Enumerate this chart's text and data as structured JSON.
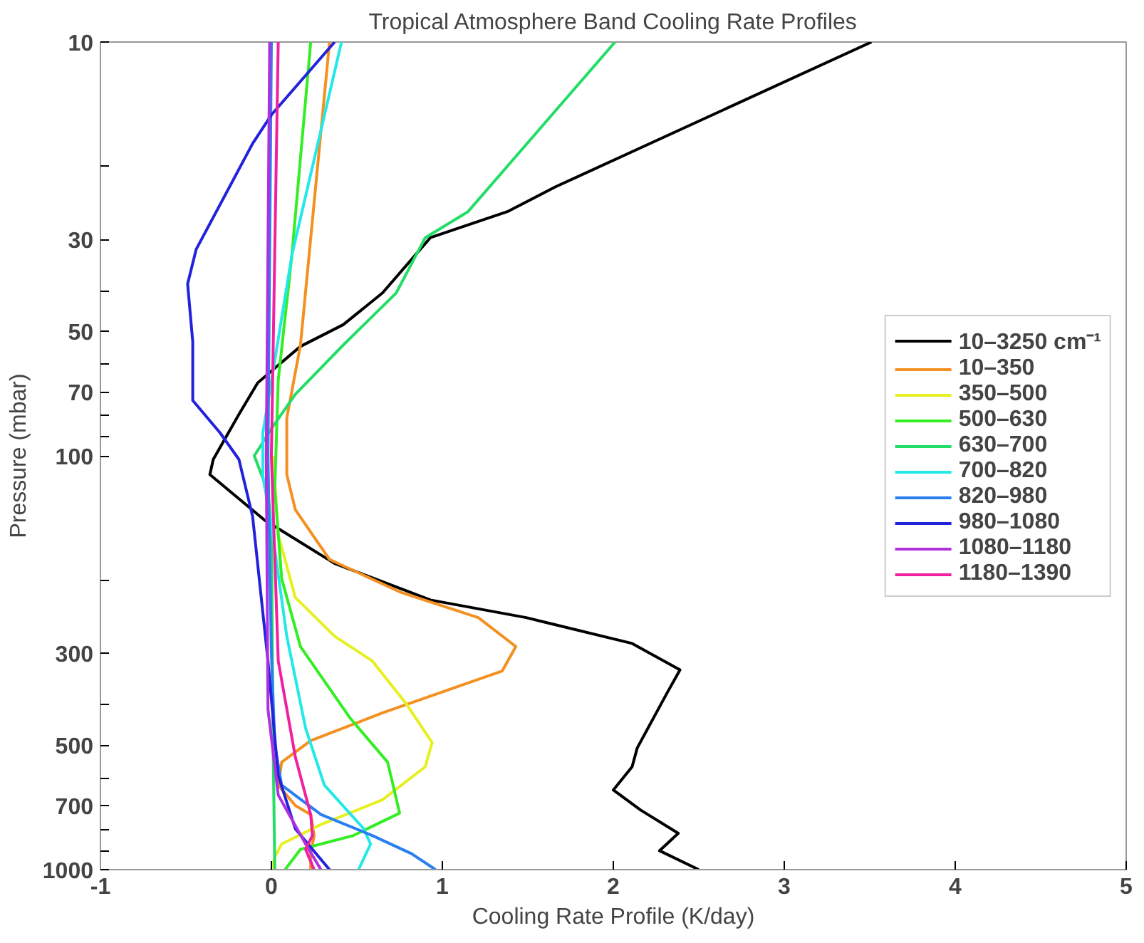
{
  "chart_data": {
    "type": "line",
    "title": "Tropical Atmosphere Band Cooling Rate Profiles",
    "xlabel": "Cooling Rate Profile (K/day)",
    "ylabel": "Pressure (mbar)",
    "xlim": [
      -1,
      5
    ],
    "xticks": [
      -1,
      0,
      1,
      2,
      3,
      4,
      5
    ],
    "ylim": [
      1000,
      10
    ],
    "log": "y",
    "yticks": [
      10,
      {
        "value": 20,
        "label": null
      },
      30,
      {
        "value": 40,
        "label": null
      },
      50,
      {
        "value": 60,
        "label": null
      },
      70,
      {
        "value": 80,
        "label": null
      },
      {
        "value": 90,
        "label": null
      },
      100,
      {
        "value": 200,
        "label": null
      },
      300,
      {
        "value": 400,
        "label": null
      },
      500,
      {
        "value": 600,
        "label": null
      },
      700,
      {
        "value": 800,
        "label": null
      },
      {
        "value": 900,
        "label": null
      },
      1000
    ],
    "grid": false,
    "legend": "right",
    "line_style": "solid",
    "marker": "none",
    "series": [
      {
        "name": "10–3250 cm⁻¹",
        "color": "#000000",
        "x": [
          3.51,
          1.66,
          1.38,
          0.93,
          0.65,
          0.42,
          0.17,
          0.04,
          -0.08,
          -0.19,
          -0.34,
          -0.36,
          -0.04,
          0.37,
          0.93,
          1.49,
          2.11,
          2.39,
          2.31,
          2.14,
          2.11,
          2.0,
          2.16,
          2.38,
          2.27,
          2.5
        ],
        "values": [
          10,
          22.4,
          25.7,
          29.7,
          40.4,
          48.2,
          54.4,
          60.4,
          66.6,
          79.4,
          102,
          111,
          143,
          182,
          223,
          246,
          284,
          329,
          377,
          508,
          564,
          642,
          718,
          817,
          900,
          1000
        ]
      },
      {
        "name": "10–350",
        "color": "#f39020",
        "x": [
          0.34,
          0.17,
          0.09,
          0.09,
          0.14,
          0.34,
          0.76,
          1.21,
          1.43,
          1.35,
          0.65,
          0.23,
          0.06,
          0.04,
          0.14,
          0.23,
          0.25,
          0.23,
          0.23
        ],
        "values": [
          10,
          54,
          81,
          111,
          135,
          178,
          214,
          246,
          289,
          331,
          418,
          488,
          550,
          625,
          700,
          736,
          827,
          915,
          1000
        ]
      },
      {
        "name": "350–500",
        "color": "#e6f020",
        "x": [
          null,
          0.01,
          0.04,
          0.14,
          0.37,
          0.59,
          0.79,
          0.94,
          0.9,
          0.65,
          0.29,
          0.06,
          0.02,
          0.0
        ],
        "values": [
          null,
          100,
          155,
          220,
          273,
          313,
          398,
          493,
          564,
          678,
          778,
          867,
          932,
          1000
        ]
      },
      {
        "name": "500–630",
        "color": "#33ee22",
        "x": [
          0.23,
          0.12,
          0.04,
          0.02,
          0.06,
          0.17,
          0.46,
          0.68,
          0.75,
          0.48,
          0.17,
          0.08
        ],
        "values": [
          10,
          32.7,
          65.7,
          120,
          198,
          289,
          430,
          550,
          730,
          827,
          893,
          1000
        ]
      },
      {
        "name": "630–700",
        "color": "#22dd66",
        "x": [
          2.01,
          1.15,
          0.9,
          0.73,
          0.42,
          0.14,
          0.0,
          -0.1,
          -0.02,
          0.0,
          0.01,
          0.02
        ],
        "values": [
          10,
          25.7,
          29.7,
          40.4,
          54,
          71,
          86,
          100,
          122,
          151,
          500,
          1000
        ]
      },
      {
        "name": "700–820",
        "color": "#22e8e8",
        "x": [
          0.41,
          0.12,
          0.0,
          -0.05,
          -0.05,
          0.0,
          0.09,
          0.2,
          0.31,
          0.54,
          0.58,
          0.51
        ],
        "values": [
          10,
          32.7,
          66,
          88,
          112,
          147,
          273,
          455,
          625,
          797,
          867,
          1000
        ]
      },
      {
        "name": "820–980",
        "color": "#2a7ff0",
        "x": [
          0.0,
          -0.02,
          0.0,
          0.02,
          0.06,
          0.29,
          0.59,
          0.82,
          0.96
        ],
        "values": [
          10,
          100,
          300,
          500,
          625,
          736,
          827,
          915,
          1000
        ]
      },
      {
        "name": "980–1080",
        "color": "#2222dd",
        "x": [
          0.37,
          0.0,
          -0.11,
          -0.44,
          -0.49,
          -0.46,
          -0.46,
          -0.3,
          -0.19,
          -0.11,
          -0.02,
          0.04,
          0.14,
          0.34
        ],
        "values": [
          10,
          15,
          17.6,
          31.7,
          38.4,
          53,
          73.5,
          88,
          102,
          140,
          313,
          593,
          797,
          1000
        ]
      },
      {
        "name": "1080–1180",
        "color": "#b030e0",
        "x": [
          -0.01,
          -0.03,
          -0.02,
          0.04,
          0.2,
          0.29
        ],
        "values": [
          10,
          100,
          410,
          660,
          867,
          1000
        ]
      },
      {
        "name": "1180–1390",
        "color": "#f020a0",
        "x": [
          0.04,
          0.0,
          0.04,
          0.14,
          0.23,
          0.24,
          0.2,
          0.25
        ],
        "values": [
          10,
          100,
          313,
          534,
          736,
          827,
          893,
          1000
        ]
      }
    ]
  }
}
